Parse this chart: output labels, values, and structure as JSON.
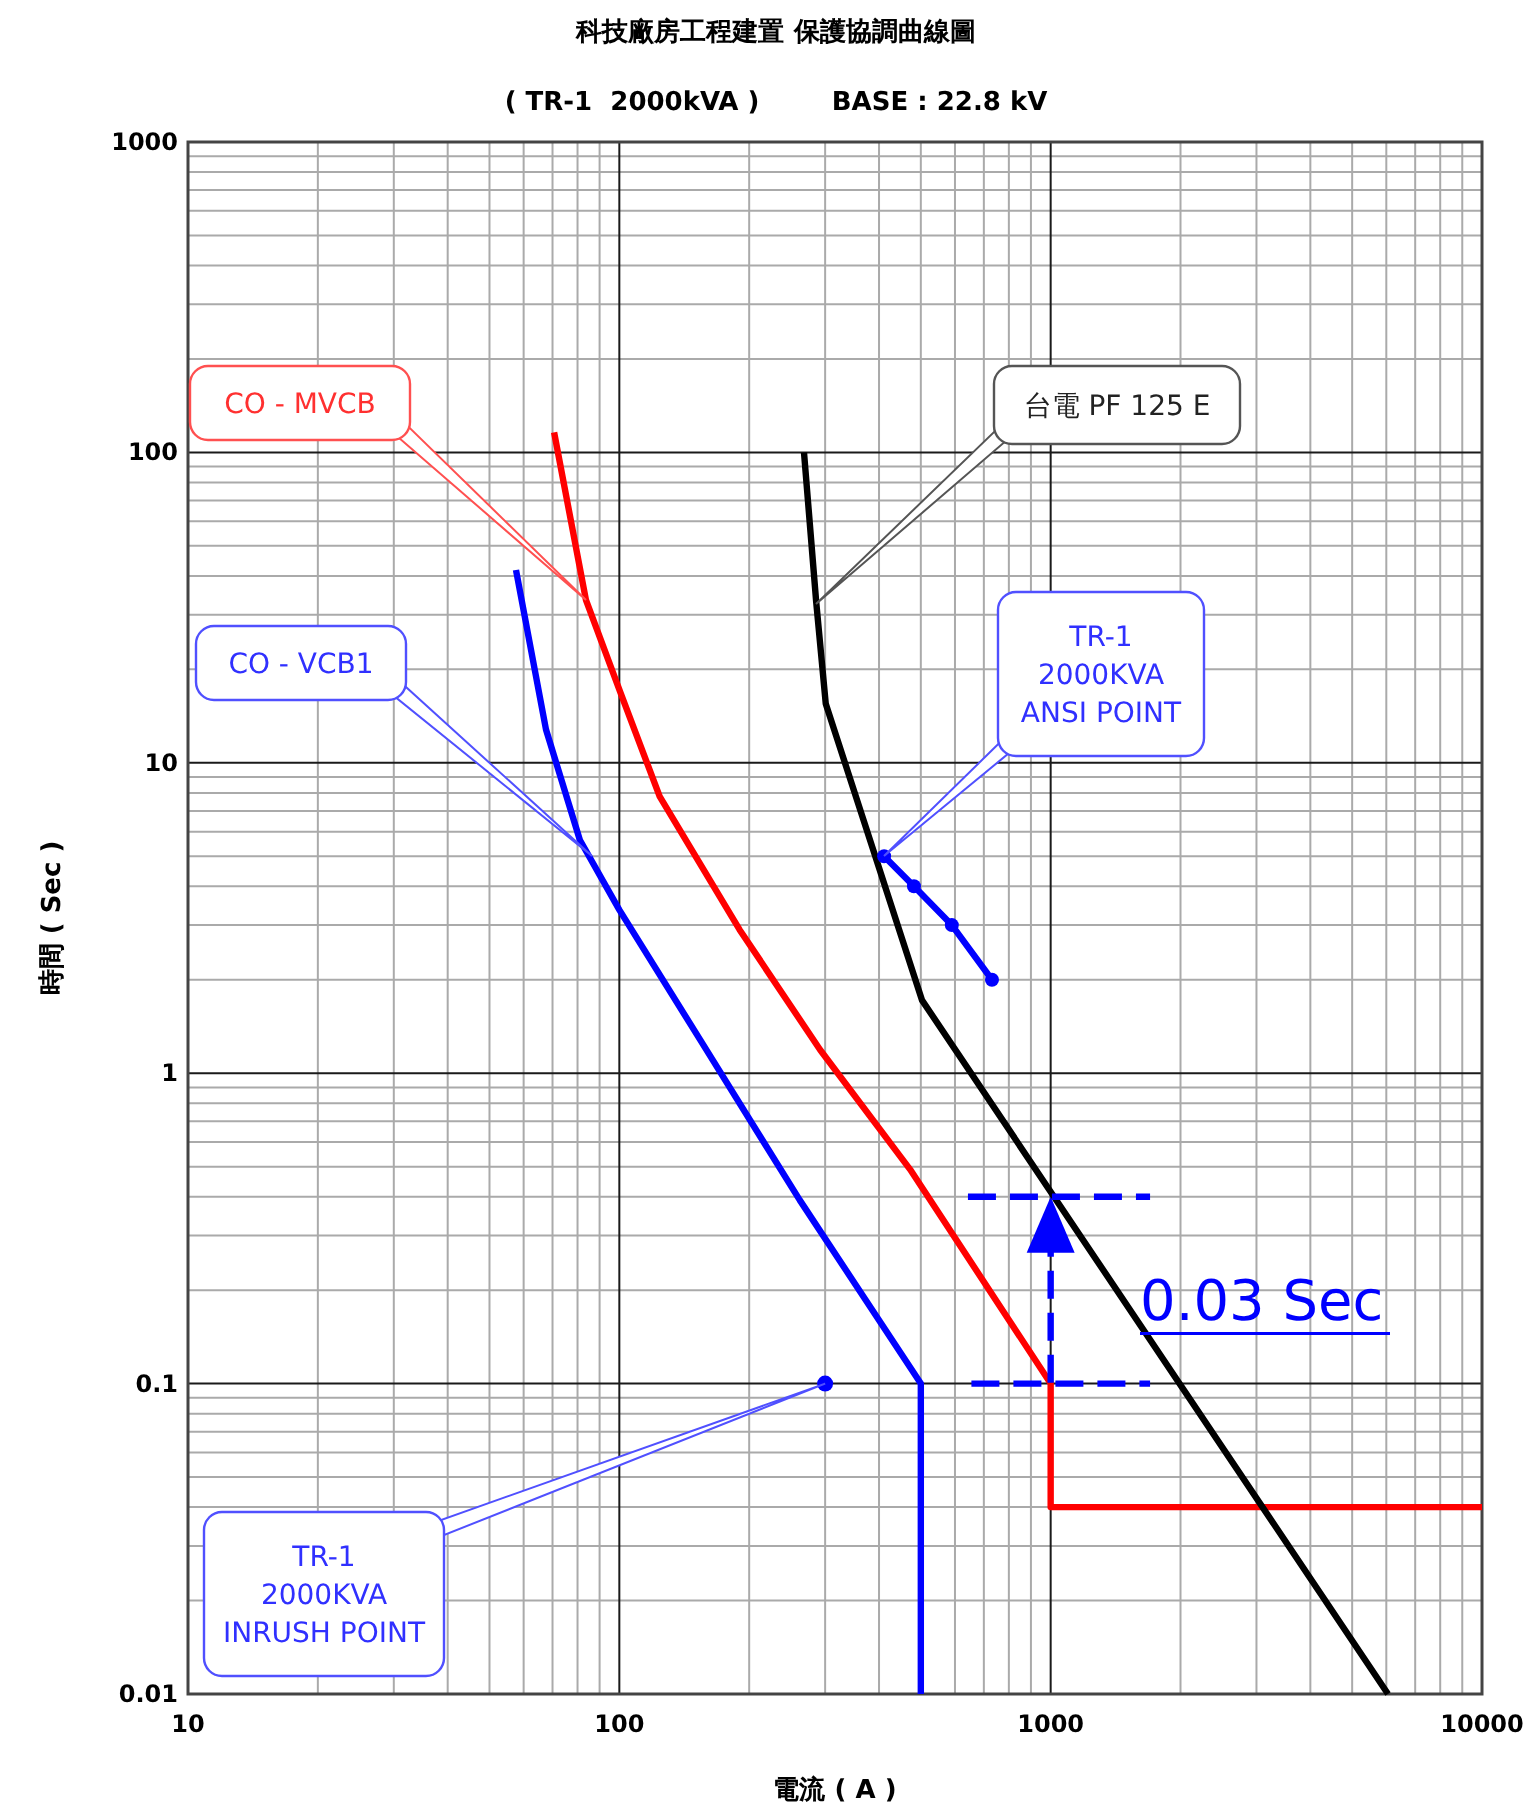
{
  "chart_data": {
    "type": "line",
    "title": "科技廠房工程建置 保護協調曲線圖",
    "subtitle": "( TR-1  2000kVA )        BASE : 22.8 kV",
    "xlabel": "電流 ( A )",
    "ylabel": "時間 ( Sec )",
    "log": "xy",
    "grid": true,
    "xlim": [
      10,
      10000
    ],
    "xticks": [
      10,
      100,
      1000,
      10000
    ],
    "ylim": [
      0.01,
      1000
    ],
    "yticks": [
      0.01,
      0.1,
      1,
      10,
      100,
      1000
    ],
    "series": [
      {
        "color": "#ff0000",
        "x": [
          70.6,
          83.7,
          100,
          124,
          190,
          292,
          472,
          1000,
          1000,
          10000
        ],
        "values": [
          116,
          33.4,
          17.2,
          7.8,
          2.9,
          1.19,
          0.49,
          0.1,
          0.04,
          0.04
        ]
      },
      {
        "color": "#0000ff",
        "x": [
          57.6,
          67.6,
          81,
          100,
          154,
          262,
          500,
          500
        ],
        "values": [
          41.8,
          12.8,
          5.64,
          3.36,
          1.28,
          0.39,
          0.1,
          0.01
        ]
      },
      {
        "color": "#000000",
        "x": [
          268,
          286,
          301,
          503,
          6054
        ],
        "values": [
          100,
          33,
          15.5,
          1.72,
          0.01
        ]
      },
      {
        "color": "#0000ff",
        "marker": "circle",
        "x": [
          411,
          482,
          590,
          731
        ],
        "values": [
          5,
          4,
          3,
          2
        ]
      },
      {
        "type": "scatter",
        "color": "#0000ff",
        "marker": "circle",
        "x": [
          300
        ],
        "values": [
          0.1
        ]
      },
      {
        "color": "#0000ff",
        "line_style": "dashed",
        "x": [
          643,
          1700
        ],
        "values": [
          0.4,
          0.4
        ]
      },
      {
        "color": "#0000ff",
        "line_style": "dashed",
        "x": [
          655,
          1700
        ],
        "values": [
          0.1,
          0.1
        ]
      }
    ],
    "annotations": [
      "CO - MVCB",
      "CO - VCB1",
      "台電 PF 125 E",
      "TR-1\n2000KVA\nANSI POINT",
      {
        "text": "TR-1\n2000KVA\nINRUSH POINT",
        "x": 300,
        "y": 0.1
      },
      {
        "text": "0.03 Sec",
        "x": 1000,
        "y": 0.4
      }
    ]
  }
}
